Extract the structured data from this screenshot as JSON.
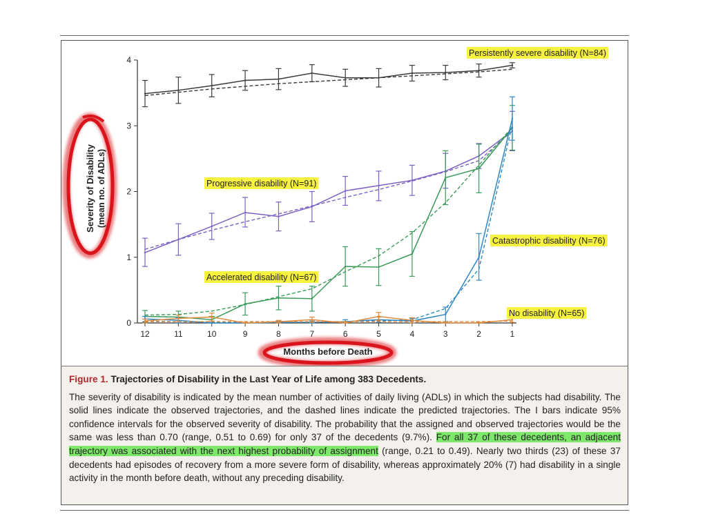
{
  "chart_data": {
    "type": "line",
    "ylabel_line1": "Severity of Disability",
    "ylabel_line2": "(mean no. of ADLs)",
    "xlabel": "Months before Death",
    "x": [
      12,
      11,
      10,
      9,
      8,
      7,
      6,
      5,
      4,
      3,
      2,
      1
    ],
    "xlim": [
      12,
      1
    ],
    "ylim": [
      0,
      4
    ],
    "yticks": [
      0,
      1,
      2,
      3,
      4
    ],
    "grid": false,
    "legend": "inline labels",
    "series": [
      {
        "name": "Persistently severe disability (N=84)",
        "color": "#3a3a3a",
        "observed": [
          3.49,
          3.54,
          3.61,
          3.69,
          3.71,
          3.8,
          3.73,
          3.73,
          3.8,
          3.81,
          3.84,
          3.92
        ],
        "ci_low": [
          3.29,
          3.34,
          3.44,
          3.54,
          3.55,
          3.67,
          3.6,
          3.59,
          3.68,
          3.7,
          3.74,
          3.88
        ],
        "ci_high": [
          3.69,
          3.74,
          3.78,
          3.84,
          3.87,
          3.93,
          3.86,
          3.87,
          3.92,
          3.92,
          3.94,
          3.96
        ],
        "predicted": [
          3.46,
          3.51,
          3.56,
          3.6,
          3.64,
          3.67,
          3.7,
          3.73,
          3.76,
          3.79,
          3.82,
          3.86
        ]
      },
      {
        "name": "Progressive disability (N=91)",
        "color": "#7b5fc4",
        "observed": [
          1.07,
          1.27,
          1.47,
          1.68,
          1.62,
          1.77,
          2.01,
          2.09,
          2.17,
          2.31,
          2.54,
          2.92
        ],
        "ci_low": [
          0.86,
          1.03,
          1.27,
          1.46,
          1.4,
          1.54,
          1.79,
          1.86,
          1.94,
          2.05,
          2.35,
          2.62
        ],
        "ci_high": [
          1.29,
          1.51,
          1.67,
          1.91,
          1.84,
          2.0,
          2.23,
          2.31,
          2.4,
          2.58,
          2.73,
          3.22
        ],
        "predicted": [
          1.12,
          1.27,
          1.41,
          1.54,
          1.66,
          1.78,
          1.91,
          2.03,
          2.16,
          2.3,
          2.47,
          2.92
        ]
      },
      {
        "name": "Accelerated disability (N=67)",
        "color": "#3a9a5a",
        "observed": [
          0.1,
          0.09,
          0.05,
          0.29,
          0.38,
          0.37,
          0.86,
          0.85,
          1.05,
          2.21,
          2.35,
          2.97
        ],
        "ci_low": [
          0.01,
          0.0,
          0.0,
          0.12,
          0.2,
          0.18,
          0.56,
          0.57,
          0.71,
          1.8,
          1.98,
          2.63
        ],
        "ci_high": [
          0.19,
          0.18,
          0.1,
          0.46,
          0.56,
          0.56,
          1.16,
          1.13,
          1.39,
          2.62,
          2.72,
          3.31
        ],
        "predicted": [
          0.12,
          0.13,
          0.18,
          0.28,
          0.4,
          0.52,
          0.78,
          1.02,
          1.37,
          1.83,
          2.4,
          2.98
        ]
      },
      {
        "name": "Catastrophic disability (N=76)",
        "color": "#2e86c1",
        "observed": [
          0.06,
          0.04,
          0.0,
          0.0,
          0.01,
          0.01,
          0.02,
          0.05,
          0.03,
          0.13,
          1.0,
          3.11
        ],
        "ci_low": [
          0.02,
          0.0,
          0.0,
          0.0,
          0.0,
          0.0,
          0.0,
          0.01,
          0.0,
          0.02,
          0.65,
          2.78
        ],
        "ci_high": [
          0.1,
          0.08,
          0.01,
          0.01,
          0.03,
          0.03,
          0.05,
          0.09,
          0.07,
          0.24,
          1.36,
          3.44
        ],
        "predicted": [
          0.03,
          0.02,
          0.01,
          0.01,
          0.01,
          0.01,
          0.02,
          0.03,
          0.05,
          0.22,
          0.82,
          3.02
        ]
      },
      {
        "name": "No disability (N=65)",
        "color": "#e08a3c",
        "observed": [
          0.03,
          0.07,
          0.09,
          0.0,
          0.02,
          0.05,
          0.0,
          0.1,
          0.04,
          0.0,
          0.0,
          0.05
        ],
        "ci_low": [
          0.0,
          0.02,
          0.03,
          0.0,
          0.0,
          0.01,
          0.0,
          0.04,
          0.0,
          0.0,
          0.0,
          0.01
        ],
        "ci_high": [
          0.06,
          0.12,
          0.15,
          0.01,
          0.04,
          0.09,
          0.01,
          0.16,
          0.08,
          0.01,
          0.01,
          0.09
        ],
        "predicted": [
          0.02,
          0.02,
          0.02,
          0.02,
          0.02,
          0.02,
          0.02,
          0.02,
          0.02,
          0.02,
          0.02,
          0.03
        ]
      }
    ]
  },
  "caption": {
    "figure_label": "Figure 1.",
    "title": "Trajectories of Disability in the Last Year of Life among 383 Decedents.",
    "text_before_highlight": "The severity of disability is indicated by the mean number of activities of daily living (ADLs) in which the subjects had disability. The solid lines indicate the observed trajectories, and the dashed lines indicate the predicted trajectories. The I bars indicate 95% confidence intervals for the observed severity of disability. The probability that the assigned and observed trajectories would be the same was less than 0.70 (range, 0.51 to 0.69) for only 37 of the decedents (9.7%). ",
    "highlighted_text": "For all 37 of these decedents, an adjacent trajectory was associated with the next highest probability of assignment",
    "text_after_highlight": " (range, 0.21 to 0.49). Nearly two thirds (23) of these 37 decedents had episodes of recovery from a more severe form of disability, whereas approximately 20% (7) had disability in a single activity in the month before death, without any preceding disability."
  },
  "colors": {
    "label_highlight": "#f7f13f",
    "caption_highlight": "#7ee86a",
    "annotation_ring": "#d9141b",
    "figure_label": "#b3262b",
    "caption_background": "#f4f1ec"
  }
}
